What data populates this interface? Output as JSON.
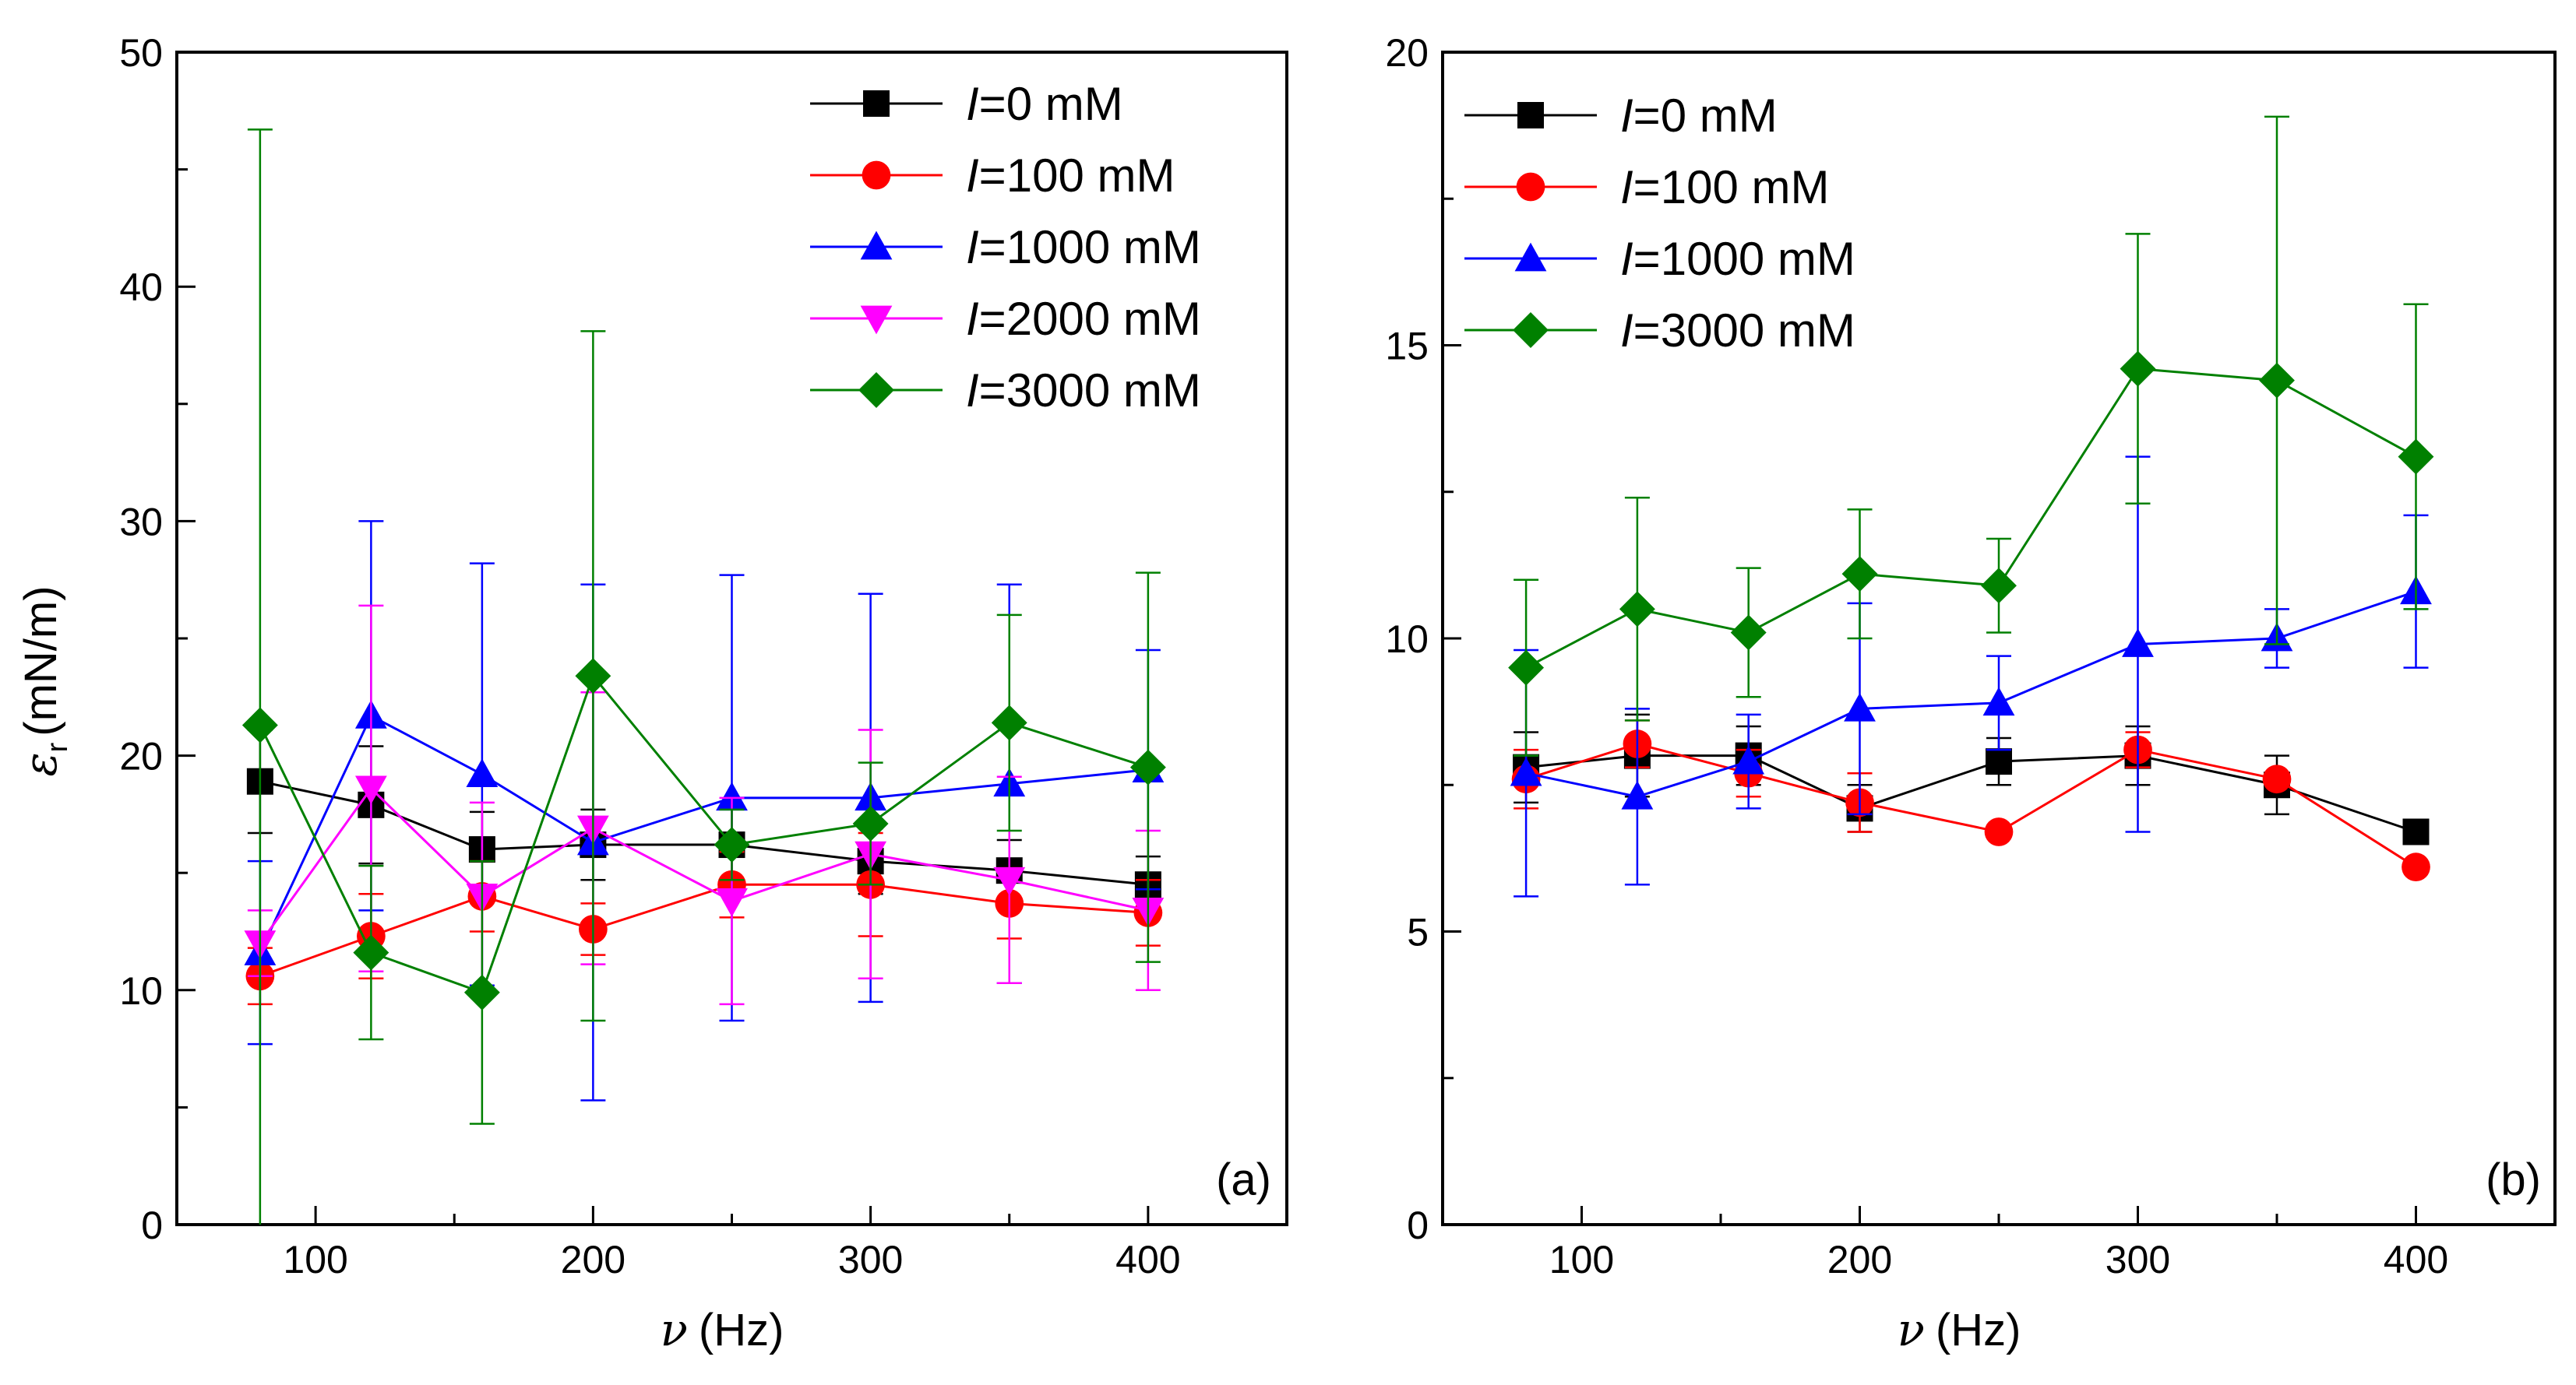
{
  "figure": {
    "x_symbol": "ν",
    "x_unit": "(Hz)",
    "y_symbol": "ε",
    "y_subscript": "r",
    "y_unit": "(mN/m)"
  },
  "chart_data": [
    {
      "type": "line",
      "panel_label": "(a)",
      "xlabel": "ν (Hz)",
      "ylabel": "εr (mN/m)",
      "xlim": [
        50,
        450
      ],
      "ylim": [
        0,
        50
      ],
      "xticks": [
        100,
        200,
        300,
        400
      ],
      "yticks": [
        0,
        10,
        20,
        30,
        40,
        50
      ],
      "legend_position": "top-right",
      "x": [
        80,
        120,
        160,
        200,
        250,
        300,
        350,
        400
      ],
      "series": [
        {
          "name": "I=0 mM",
          "legend_prefix": "I",
          "legend_suffix": "=0 mM",
          "color": "#000000",
          "marker": "square",
          "values": [
            18.9,
            17.9,
            16.0,
            16.2,
            16.2,
            15.5,
            15.1,
            14.5
          ],
          "errors": [
            2.2,
            2.5,
            1.6,
            1.5,
            1.6,
            1.4,
            1.3,
            1.2
          ]
        },
        {
          "name": "I=100 mM",
          "legend_prefix": "I",
          "legend_suffix": "=100 mM",
          "color": "#ff0000",
          "marker": "circle",
          "values": [
            10.6,
            12.3,
            14.0,
            12.6,
            14.5,
            14.5,
            13.7,
            13.3
          ],
          "errors": [
            1.2,
            1.8,
            1.5,
            1.1,
            1.4,
            2.2,
            1.5,
            1.4
          ]
        },
        {
          "name": "I=1000 mM",
          "legend_prefix": "I",
          "legend_suffix": "=1000 mM",
          "color": "#0000ff",
          "marker": "triangle-up",
          "values": [
            11.6,
            21.7,
            19.2,
            16.3,
            18.2,
            18.2,
            18.8,
            19.4
          ],
          "errors": [
            3.9,
            8.3,
            9.0,
            11.0,
            9.5,
            8.7,
            8.5,
            5.1
          ]
        },
        {
          "name": "I=2000 mM",
          "legend_prefix": "I",
          "legend_suffix": "=2000 mM",
          "color": "#ff00ff",
          "marker": "triangle-down",
          "values": [
            12.0,
            18.6,
            14.0,
            16.9,
            13.8,
            15.8,
            14.7,
            13.4
          ],
          "errors": [
            1.4,
            7.8,
            4.0,
            5.8,
            4.4,
            5.3,
            4.4,
            3.4
          ]
        },
        {
          "name": "I=3000 mM",
          "legend_prefix": "I",
          "legend_suffix": "=3000 mM",
          "color": "#008000",
          "marker": "diamond",
          "values": [
            21.3,
            11.6,
            9.9,
            23.4,
            16.2,
            17.1,
            21.4,
            19.5
          ],
          "errors": [
            25.4,
            3.7,
            5.6,
            14.7,
            1.5,
            2.6,
            4.6,
            8.3
          ]
        }
      ]
    },
    {
      "type": "line",
      "panel_label": "(b)",
      "xlabel": "ν (Hz)",
      "ylabel": "",
      "xlim": [
        50,
        450
      ],
      "ylim": [
        0,
        20
      ],
      "xticks": [
        100,
        200,
        300,
        400
      ],
      "yticks": [
        0,
        5,
        10,
        15,
        20
      ],
      "legend_position": "top-left",
      "x": [
        80,
        120,
        160,
        200,
        250,
        300,
        350,
        400
      ],
      "series": [
        {
          "name": "I=0 mM",
          "legend_prefix": "I",
          "legend_suffix": "=0 mM",
          "color": "#000000",
          "marker": "square",
          "values": [
            7.8,
            8.0,
            8.0,
            7.1,
            7.9,
            8.0,
            7.5,
            6.7
          ],
          "errors": [
            0.6,
            0.7,
            0.5,
            0.4,
            0.4,
            0.5,
            0.5,
            0.0
          ]
        },
        {
          "name": "I=100 mM",
          "legend_prefix": "I",
          "legend_suffix": "=100 mM",
          "color": "#ff0000",
          "marker": "circle",
          "values": [
            7.6,
            8.2,
            7.7,
            7.2,
            6.7,
            8.1,
            7.6,
            6.1
          ],
          "errors": [
            0.5,
            0.4,
            0.4,
            0.5,
            0.0,
            0.3,
            0.0,
            0.0
          ]
        },
        {
          "name": "I=1000 mM",
          "legend_prefix": "I",
          "legend_suffix": "=1000 mM",
          "color": "#0000ff",
          "marker": "triangle-up",
          "values": [
            7.7,
            7.3,
            7.9,
            8.8,
            8.9,
            9.9,
            10.0,
            10.8
          ],
          "errors": [
            2.1,
            1.5,
            0.8,
            1.8,
            0.8,
            3.2,
            0.5,
            1.3
          ]
        },
        {
          "name": "I=3000 mM",
          "legend_prefix": "I",
          "legend_suffix": "=3000 mM",
          "color": "#008000",
          "marker": "diamond",
          "values": [
            9.5,
            10.5,
            10.1,
            11.1,
            10.9,
            14.6,
            14.4,
            13.1
          ],
          "errors": [
            1.5,
            1.9,
            1.1,
            1.1,
            0.8,
            2.3,
            4.5,
            2.6
          ]
        }
      ]
    }
  ]
}
